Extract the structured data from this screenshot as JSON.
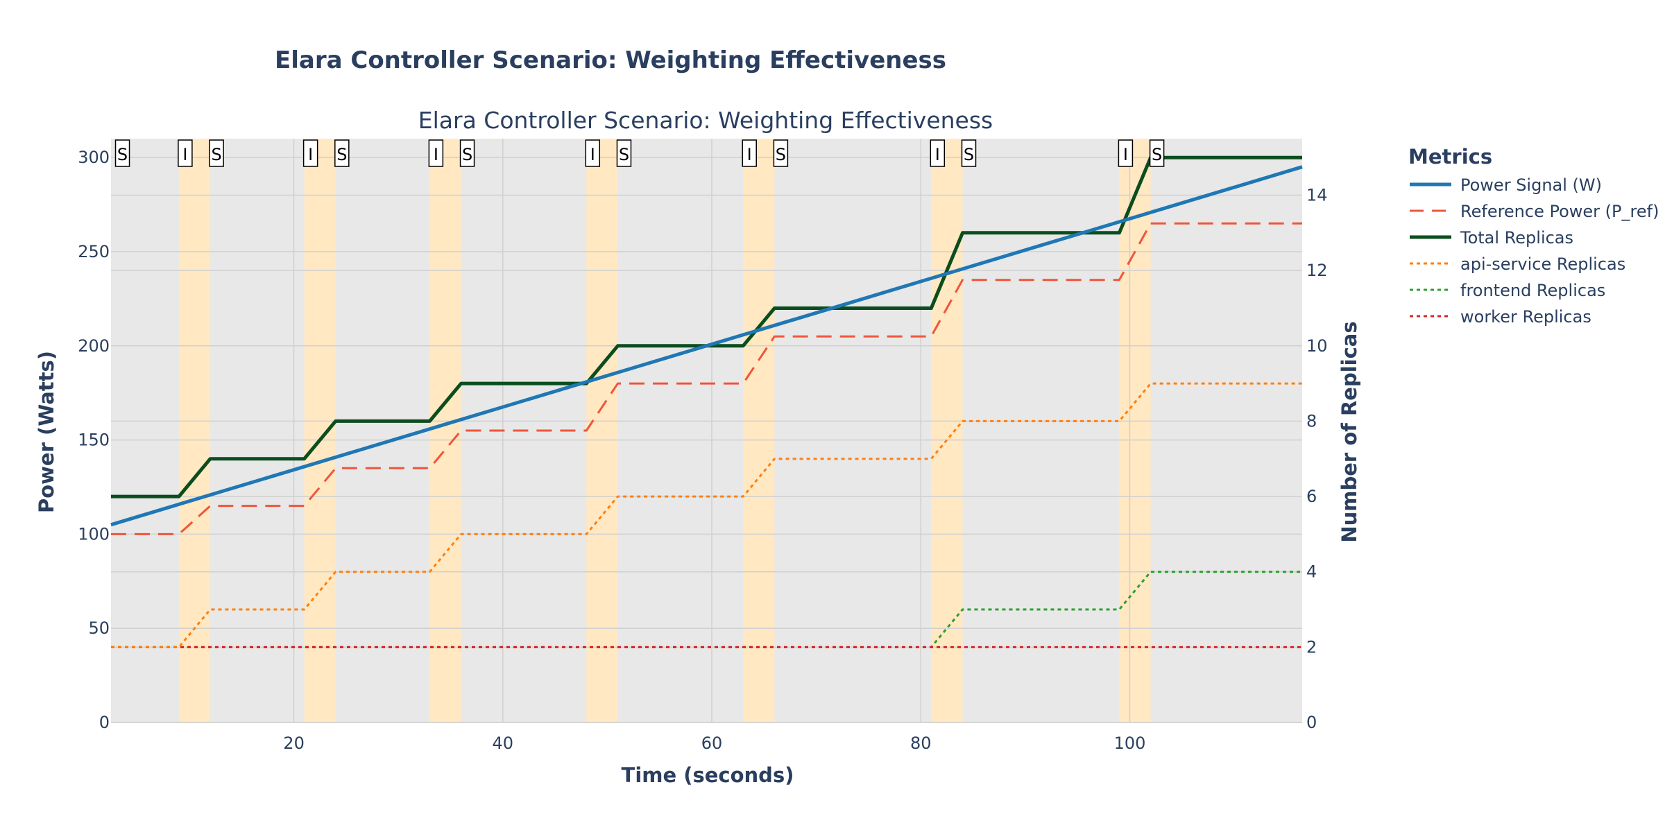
{
  "chart_data": {
    "type": "line",
    "title": "Elara Controller Scenario: Weighting Effectiveness",
    "subtitle": "Elara Controller Scenario: Weighting Effectiveness",
    "xlabel": "Time (seconds)",
    "ylabel_left": "Power (Watts)",
    "ylabel_right": "Number of Replicas",
    "xlim": [
      2.5,
      116.5
    ],
    "ylim_left": [
      0,
      310
    ],
    "ylim_right": [
      0,
      15.5
    ],
    "x_ticks": [
      20,
      40,
      60,
      80,
      100
    ],
    "y_left_ticks": [
      0,
      50,
      100,
      150,
      200,
      250,
      300
    ],
    "y_right_ticks": [
      0,
      2,
      4,
      6,
      8,
      10,
      12,
      14
    ],
    "grid": true,
    "legend": {
      "title": "Metrics",
      "position": "top-right, outside plot"
    },
    "shaded_regions": [
      [
        9,
        12
      ],
      [
        21,
        24
      ],
      [
        33,
        36
      ],
      [
        48,
        51
      ],
      [
        63,
        66
      ],
      [
        81,
        84
      ],
      [
        99,
        102
      ]
    ],
    "event_markers": [
      {
        "x": 3,
        "label": "S"
      },
      {
        "x": 9,
        "label": "I"
      },
      {
        "x": 12,
        "label": "S"
      },
      {
        "x": 21,
        "label": "I"
      },
      {
        "x": 24,
        "label": "S"
      },
      {
        "x": 33,
        "label": "I"
      },
      {
        "x": 36,
        "label": "S"
      },
      {
        "x": 48,
        "label": "I"
      },
      {
        "x": 51,
        "label": "S"
      },
      {
        "x": 63,
        "label": "I"
      },
      {
        "x": 66,
        "label": "S"
      },
      {
        "x": 81,
        "label": "I"
      },
      {
        "x": 84,
        "label": "S"
      },
      {
        "x": 99,
        "label": "I"
      },
      {
        "x": 102,
        "label": "S"
      }
    ],
    "series": [
      {
        "name": "Power Signal (W)",
        "axis": "left",
        "color": "#1f77b4",
        "dash": "solid",
        "width": 5,
        "x": [
          2.5,
          116.5
        ],
        "y": [
          105,
          295
        ]
      },
      {
        "name": "Reference Power (P_ref)",
        "axis": "left",
        "color": "#ef553b",
        "dash": "dash",
        "width": 3,
        "x": [
          2.5,
          9,
          12,
          21,
          24,
          33,
          36,
          48,
          51,
          63,
          66,
          81,
          84,
          99,
          102,
          116.5
        ],
        "y": [
          100,
          100,
          115,
          115,
          135,
          135,
          155,
          155,
          180,
          180,
          205,
          205,
          235,
          235,
          265,
          265
        ]
      },
      {
        "name": "Total Replicas",
        "axis": "right",
        "color": "#0b4d1e",
        "dash": "solid",
        "width": 5,
        "x": [
          2.5,
          9,
          12,
          21,
          24,
          33,
          36,
          48,
          51,
          63,
          66,
          81,
          84,
          99,
          102,
          116.5
        ],
        "y": [
          6,
          6,
          7,
          7,
          8,
          8,
          9,
          9,
          10,
          10,
          11,
          11,
          13,
          13,
          15,
          15
        ]
      },
      {
        "name": "api-service Replicas",
        "axis": "right",
        "color": "#ff7f0e",
        "dash": "dot",
        "width": 3,
        "x": [
          2.5,
          9,
          12,
          21,
          24,
          33,
          36,
          48,
          51,
          63,
          66,
          81,
          84,
          99,
          102,
          116.5
        ],
        "y": [
          2,
          2,
          3,
          3,
          4,
          4,
          5,
          5,
          6,
          6,
          7,
          7,
          8,
          8,
          9,
          9
        ]
      },
      {
        "name": "frontend Replicas",
        "axis": "right",
        "color": "#2ca02c",
        "dash": "dot",
        "width": 3,
        "x": [
          2.5,
          81,
          84,
          99,
          102,
          116.5
        ],
        "y": [
          2,
          2,
          3,
          3,
          4,
          4
        ]
      },
      {
        "name": "worker Replicas",
        "axis": "right",
        "color": "#d62728",
        "dash": "dot",
        "width": 3,
        "x": [
          2.5,
          116.5
        ],
        "y": [
          2,
          2
        ]
      }
    ]
  },
  "colors": {
    "plot_background": "#e8e8e8",
    "grid": "#d0d0d0",
    "shade": "#ffe8c2",
    "text": "#2a3f5f"
  }
}
